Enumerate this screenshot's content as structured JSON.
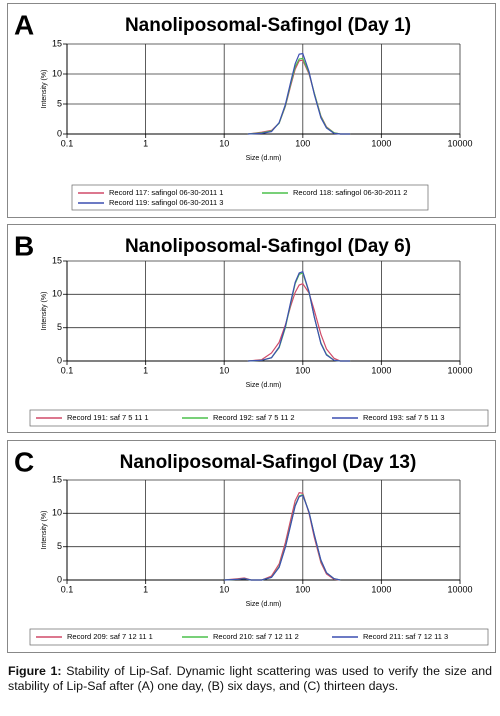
{
  "chart_data": [
    {
      "type": "line",
      "panel": "A",
      "title": "Nanoliposomal-Safingol (Day 1)",
      "xlabel": "Size (d.nm)",
      "ylabel": "Intensity (%)",
      "xscale": "log",
      "grid": true,
      "legend": "bottom",
      "xlim": [
        0.1,
        10000
      ],
      "xticks": [
        0.1,
        1,
        10,
        100,
        1000,
        10000
      ],
      "ylim": [
        0,
        15
      ],
      "yticks": [
        0,
        5,
        10,
        15
      ],
      "x": [
        20,
        30,
        40,
        50,
        60,
        70,
        80,
        90,
        100,
        120,
        140,
        170,
        200,
        250,
        300,
        400
      ],
      "series": [
        {
          "name": "Record 117: safingol 06-30-2011 1",
          "color": "#d04a68",
          "values": [
            0,
            0.3,
            0.6,
            1.8,
            4.6,
            8.0,
            10.8,
            12.2,
            12.3,
            10.0,
            6.8,
            3.0,
            1.2,
            0.2,
            0,
            0
          ]
        },
        {
          "name": "Record 118: safingol 06-30-2011 2",
          "color": "#4cc04c",
          "values": [
            0,
            0.2,
            0.5,
            1.8,
            4.7,
            8.3,
            11.2,
            12.5,
            12.6,
            10.2,
            6.8,
            2.9,
            1.1,
            0.2,
            0,
            0
          ]
        },
        {
          "name": "Record 119: safingol 06-30-2011 3",
          "color": "#3c4eb0",
          "values": [
            0,
            0.1,
            0.4,
            1.9,
            4.9,
            8.6,
            11.7,
            13.3,
            13.4,
            10.4,
            6.6,
            2.7,
            1.0,
            0.1,
            0,
            0
          ]
        }
      ]
    },
    {
      "type": "line",
      "panel": "B",
      "title": "Nanoliposomal-Safingol (Day 6)",
      "xlabel": "Size (d.nm)",
      "ylabel": "Intensity (%)",
      "xscale": "log",
      "grid": true,
      "legend": "bottom",
      "xlim": [
        0.1,
        10000
      ],
      "xticks": [
        0.1,
        1,
        10,
        100,
        1000,
        10000
      ],
      "ylim": [
        0,
        15
      ],
      "yticks": [
        0,
        5,
        10,
        15
      ],
      "x": [
        20,
        30,
        40,
        50,
        60,
        70,
        80,
        90,
        100,
        120,
        140,
        170,
        200,
        250,
        300,
        400
      ],
      "series": [
        {
          "name": "Record 191: saf 7 5 11 1",
          "color": "#d04a68",
          "values": [
            0,
            0.2,
            1.2,
            2.8,
            5.4,
            8.2,
            10.3,
            11.4,
            11.6,
            10.2,
            7.6,
            4.0,
            1.8,
            0.4,
            0,
            0
          ]
        },
        {
          "name": "Record 192: saf 7 5 11 2",
          "color": "#4cc04c",
          "values": [
            0,
            0.1,
            0.5,
            2.0,
            5.0,
            8.6,
            11.6,
            13.0,
            13.2,
            10.3,
            6.6,
            2.7,
            1.0,
            0.1,
            0,
            0
          ]
        },
        {
          "name": "Record 193: saf 7 5 11 3",
          "color": "#3c4eb0",
          "values": [
            0,
            0.1,
            0.5,
            2.1,
            5.2,
            8.8,
            11.8,
            13.2,
            13.4,
            10.4,
            6.6,
            2.6,
            0.9,
            0.1,
            0,
            0
          ]
        }
      ]
    },
    {
      "type": "line",
      "panel": "C",
      "title": "Nanoliposomal-Safingol (Day 13)",
      "xlabel": "Size (d.nm)",
      "ylabel": "Intensity (%)",
      "xscale": "log",
      "grid": true,
      "legend": "bottom",
      "xlim": [
        0.1,
        10000
      ],
      "xticks": [
        0.1,
        1,
        10,
        100,
        1000,
        10000
      ],
      "ylim": [
        0,
        15
      ],
      "yticks": [
        0,
        5,
        10,
        15
      ],
      "x": [
        10,
        15,
        18,
        22,
        30,
        40,
        50,
        60,
        70,
        80,
        90,
        100,
        120,
        140,
        170,
        200,
        250,
        300
      ],
      "series": [
        {
          "name": "Record 209: saf 7 12 11 1",
          "color": "#d04a68",
          "values": [
            0,
            0.2,
            0.3,
            0,
            0,
            0.6,
            2.4,
            5.6,
            9.0,
            11.9,
            13.1,
            13.0,
            10.0,
            6.4,
            2.6,
            0.9,
            0.1,
            0
          ]
        },
        {
          "name": "Record 210: saf 7 12 11 2",
          "color": "#4cc04c",
          "values": [
            0,
            0.1,
            0.2,
            0,
            0,
            0.4,
            2.0,
            5.0,
            8.3,
            11.2,
            12.6,
            12.8,
            10.2,
            6.8,
            2.9,
            1.1,
            0.2,
            0
          ]
        },
        {
          "name": "Record 211: saf 7 12 11 3",
          "color": "#3c4eb0",
          "values": [
            0,
            0.1,
            0.2,
            0,
            0,
            0.4,
            1.9,
            4.9,
            8.2,
            11.1,
            12.5,
            12.7,
            10.2,
            6.8,
            3.0,
            1.1,
            0.2,
            0
          ]
        }
      ]
    }
  ],
  "caption": {
    "label": "Figure 1:",
    "text": "Stability of Lip-Saf. Dynamic light scattering was used to verify the size and stability of Lip-Saf after (A) one day, (B) six days, and (C) thirteen days."
  }
}
